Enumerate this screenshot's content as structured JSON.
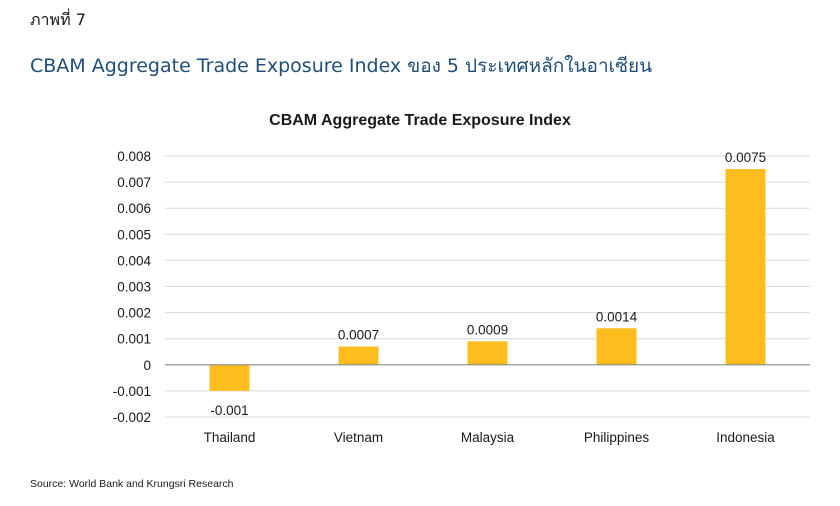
{
  "header": {
    "figure_label": "ภาพที่ 7",
    "figure_title": "CBAM Aggregate Trade Exposure Index ของ 5 ประเทศหลักในอาเซียน"
  },
  "chart_data": {
    "type": "bar",
    "title": "CBAM Aggregate Trade Exposure Index",
    "categories": [
      "Thailand",
      "Vietnam",
      "Malaysia",
      "Philippines",
      "Indonesia"
    ],
    "values": [
      -0.001,
      0.0007,
      0.0009,
      0.0014,
      0.0075
    ],
    "data_labels": [
      "-0.001",
      "0.0007",
      "0.0009",
      "0.0014",
      "0.0075"
    ],
    "ylim": [
      -0.002,
      0.008
    ],
    "yticks": [
      0.008,
      0.007,
      0.006,
      0.005,
      0.004,
      0.003,
      0.002,
      0.001,
      0,
      -0.001,
      -0.002
    ],
    "ytick_labels": [
      "0.008",
      "0.007",
      "0.006",
      "0.005",
      "0.004",
      "0.003",
      "0.002",
      "0.001",
      "0",
      "-0.001",
      "-0.002"
    ],
    "grid": true,
    "legend": false,
    "bar_color": "#FDBD1F",
    "grid_color": "#d9d9d9"
  },
  "footer": {
    "source": "Source: World Bank and Krungsri Research"
  }
}
